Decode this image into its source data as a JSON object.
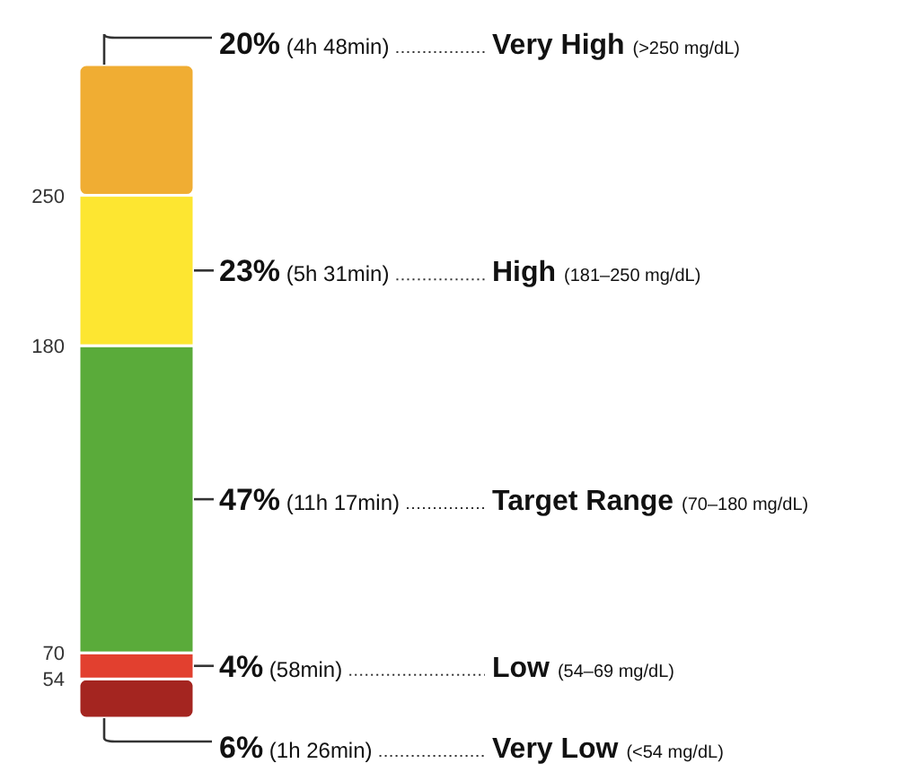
{
  "chart_data": {
    "type": "bar",
    "stacked": true,
    "categories": [
      null
    ],
    "series": [
      {
        "name": "Very Low (<54 mg/dL)",
        "color": "#a42520",
        "values": [
          6
        ],
        "value_labels": [
          "6% (1h 26min)"
        ]
      },
      {
        "name": "Low (54–69 mg/dL)",
        "color": "#e2402f",
        "values": [
          4
        ],
        "value_labels": [
          "4% (58min)"
        ]
      },
      {
        "name": "Target Range (70–180 mg/dL)",
        "color": "#5aab3a",
        "values": [
          47
        ],
        "value_labels": [
          "47% (11h 17min)"
        ]
      },
      {
        "name": "High (181–250 mg/dL)",
        "color": "#fde631",
        "values": [
          23
        ],
        "value_labels": [
          "23% (5h 31min)"
        ]
      },
      {
        "name": "Very High (>250 mg/dL)",
        "color": "#f0ad33",
        "values": [
          20
        ],
        "value_labels": [
          "20% (4h 48min)"
        ]
      }
    ],
    "annotations": [
      "250",
      "180",
      "70",
      "54"
    ]
  }
}
